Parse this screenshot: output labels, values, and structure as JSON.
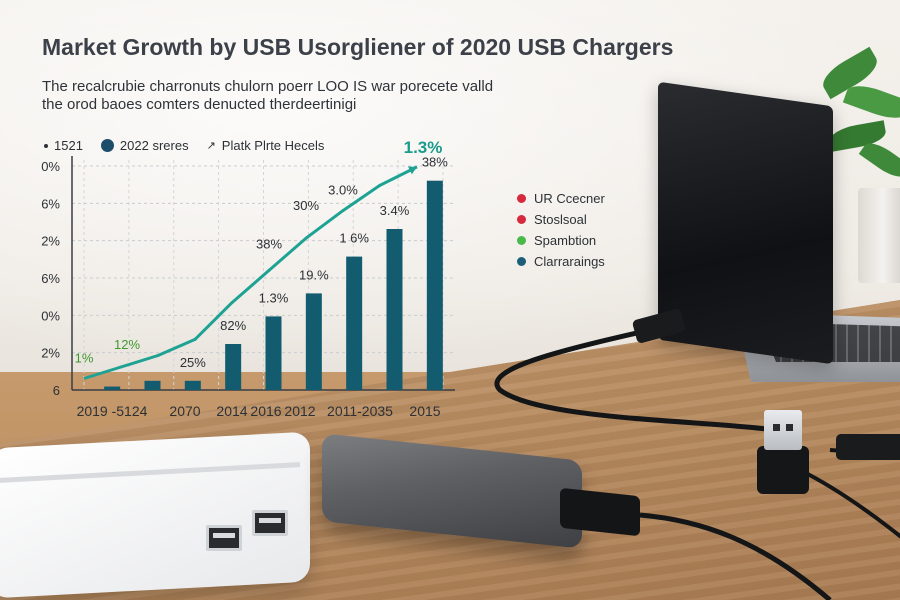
{
  "title": "Market Growth by USB Usorgliener of 2020 USB Chargers",
  "subtitle_line1": "The recalcrubie charronuts chulorn poerr LOO IS war porecete valld",
  "subtitle_line2": "the orod baoes comters denucted therdeertinigi",
  "top_legend": [
    {
      "marker": "small-dot",
      "label": "1521"
    },
    {
      "marker": "big-dot",
      "label": "2022 sreres"
    },
    {
      "marker": "arrow",
      "label": "Platk Plrte Hecels"
    }
  ],
  "right_legend": [
    {
      "label": "UR Ccecner",
      "color": "#d6293e"
    },
    {
      "label": "Stoslsoal",
      "color": "#d6293e"
    },
    {
      "label": "Spambtion",
      "color": "#4bb84a"
    },
    {
      "label": "Clarraraings",
      "color": "#1c5e78"
    }
  ],
  "colors": {
    "bar": "#135b6e",
    "line": "#1ea293",
    "green_label": "#3f9a2e",
    "teal_label": "#1a9b8c"
  },
  "chart_data": {
    "type": "bar",
    "title": "Market Growth by USB Usorgliener of 2020 USB Chargers",
    "xlabel": "",
    "ylabel": "",
    "y_tick_labels": [
      "0%",
      "6%",
      "2%",
      "6%",
      "0%",
      "2%",
      "6"
    ],
    "x_tick_labels": [
      "2019 -5124",
      "2070",
      "2014",
      "2016",
      "2012",
      "2011-2035",
      "2015"
    ],
    "ylim": [
      0,
      100
    ],
    "grid": true,
    "legend_position": "top",
    "bar_values": [
      1.5,
      4,
      4,
      20,
      32,
      42,
      58,
      70,
      91
    ],
    "bar_labels": [
      "",
      "",
      "25%",
      "82%",
      "1.3%",
      "19.%",
      "1 6%",
      "3.4%",
      "38%"
    ],
    "line_values": [
      5,
      10,
      15,
      22,
      38,
      52,
      66,
      78,
      89,
      97
    ],
    "line_labels": [
      {
        "text": "1%",
        "color": "green"
      },
      {
        "text": "12%",
        "color": "green"
      },
      {
        "text": "38%",
        "color": "dark"
      },
      {
        "text": "30%",
        "color": "dark"
      },
      {
        "text": "3.0%",
        "color": "dark"
      },
      {
        "text": "1.3%",
        "color": "teal"
      }
    ]
  }
}
